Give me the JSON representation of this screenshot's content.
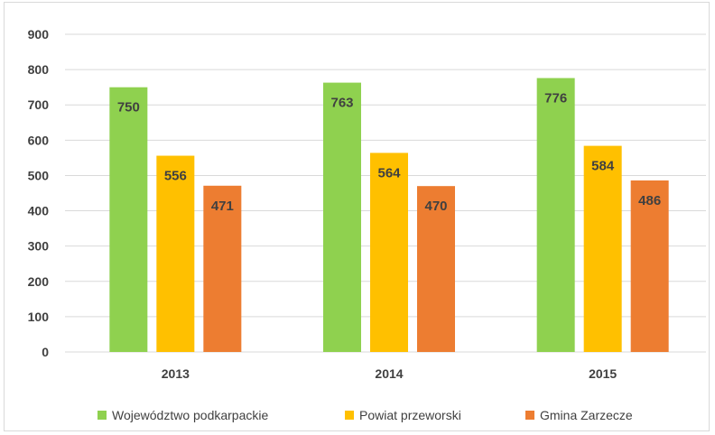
{
  "chart_data": {
    "type": "bar",
    "categories": [
      "2013",
      "2014",
      "2015"
    ],
    "series": [
      {
        "name": "Województwo podkarpackie",
        "values": [
          750,
          763,
          776
        ],
        "color": "#8fd14f"
      },
      {
        "name": "Powiat przeworski",
        "values": [
          556,
          564,
          584
        ],
        "color": "#ffc000"
      },
      {
        "name": "Gmina Zarzecze",
        "values": [
          471,
          470,
          486
        ],
        "color": "#ed7d31"
      }
    ],
    "yticks": [
      "0",
      "100",
      "200",
      "300",
      "400",
      "500",
      "600",
      "700",
      "800",
      "900"
    ],
    "ylim": [
      0,
      900
    ],
    "grid": true,
    "legend_position": "bottom",
    "data_labels": true
  }
}
